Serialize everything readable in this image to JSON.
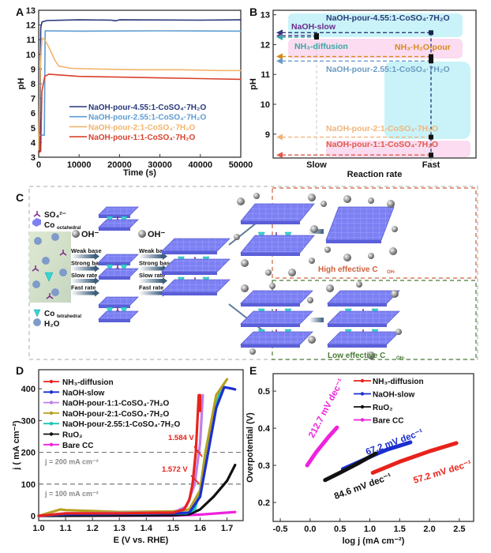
{
  "panel_labels": [
    "A",
    "B",
    "C",
    "D",
    "E"
  ],
  "chart_data": [
    {
      "panel": "A",
      "type": "line",
      "xlabel": "Time (s)",
      "ylabel": "pH",
      "xlim": [
        0,
        50000
      ],
      "ylim": [
        3,
        13
      ],
      "xticks": [
        "0",
        "10000",
        "20000",
        "30000",
        "40000",
        "50000"
      ],
      "yticks": [
        "3",
        "4",
        "5",
        "6",
        "7",
        "8",
        "9",
        "10",
        "11",
        "12",
        "13"
      ],
      "legend_placement": "bottom-center",
      "series": [
        {
          "name": "NaOH-pour-4.55:1-CoSO₄·7H₂O",
          "color": "#27367a",
          "points": [
            [
              0,
              3.3
            ],
            [
              300,
              3.4
            ],
            [
              500,
              11.8
            ],
            [
              800,
              12.2
            ],
            [
              2000,
              12.3
            ],
            [
              10000,
              12.35
            ],
            [
              18000,
              12.33
            ],
            [
              19000,
              12.28
            ],
            [
              20000,
              12.35
            ],
            [
              40000,
              12.33
            ],
            [
              50000,
              12.35
            ]
          ]
        },
        {
          "name": "NaOH-pour-2.55:1-CoSO₄·7H₂O",
          "color": "#5d9bd0",
          "points": [
            [
              0,
              4.5
            ],
            [
              1400,
              4.5
            ],
            [
              1600,
              11.6
            ],
            [
              10000,
              11.58
            ],
            [
              30000,
              11.6
            ],
            [
              50000,
              11.58
            ]
          ]
        },
        {
          "name": "NaOH-pour-2:1-CoSO₄·7H₂O",
          "color": "#f2b46c",
          "points": [
            [
              0,
              3.5
            ],
            [
              400,
              9
            ],
            [
              800,
              11.1
            ],
            [
              1500,
              11.0
            ],
            [
              2500,
              10.5
            ],
            [
              4000,
              9.6
            ],
            [
              5000,
              9.2
            ],
            [
              8000,
              9.05
            ],
            [
              15000,
              9.0
            ],
            [
              25000,
              8.95
            ],
            [
              35000,
              8.95
            ],
            [
              45000,
              8.9
            ],
            [
              50000,
              8.9
            ]
          ]
        },
        {
          "name": "NaOH-pour-1:1-CoSO₄·7H₂O",
          "color": "#d8402c",
          "points": [
            [
              0,
              3.3
            ],
            [
              500,
              3.4
            ],
            [
              800,
              7.5
            ],
            [
              1500,
              8.5
            ],
            [
              2500,
              8.65
            ],
            [
              5000,
              8.6
            ],
            [
              10000,
              8.5
            ],
            [
              20000,
              8.45
            ],
            [
              30000,
              8.4
            ],
            [
              40000,
              8.35
            ],
            [
              50000,
              8.3
            ]
          ]
        }
      ]
    },
    {
      "panel": "B",
      "type": "scatter",
      "xlabel": "Reaction rate",
      "ylabel": "pH",
      "categories": [
        "Slow",
        "Fast"
      ],
      "ylim": [
        8.2,
        13.15
      ],
      "yticks": [
        "9",
        "10",
        "11",
        "12",
        "13"
      ],
      "points": [
        {
          "name": "NaOH-pour-4.55:1-CoSO₄·7H₂O",
          "x": "Fast",
          "y": 12.4,
          "color": "#2b3a7a"
        },
        {
          "name": "NaOH-slow",
          "x": "Slow",
          "y": 12.3,
          "color": "#6a2c8c"
        },
        {
          "name": "NH₃-diffusion",
          "x": "Slow",
          "y": 12.25,
          "color": "#3aa6a6"
        },
        {
          "name": "NH₃·H₂O-pour",
          "x": "Fast",
          "y": 11.6,
          "color": "#d98a1a"
        },
        {
          "name": "NaOH-pour-2.55:1-CoSO₄·7H₂O",
          "x": "Fast",
          "y": 11.45,
          "color": "#6b9bc3"
        },
        {
          "name": "NaOH-pour-2:1-CoSO₄·7H₂O",
          "x": "Fast",
          "y": 8.9,
          "color": "#f2b47a"
        },
        {
          "name": "NaOH-pour-1:1-CoSO₄·7H₂O",
          "x": "Fast",
          "y": 8.3,
          "color": "#e25a4a"
        }
      ],
      "region_colors": {
        "cyan": "#c9f3f8",
        "pink": "#fbdcf0"
      }
    },
    {
      "panel": "D",
      "type": "line",
      "xlabel": "E (V vs. RHE)",
      "ylabel": "j ( mA cm⁻²)",
      "xlim": [
        1.0,
        1.76
      ],
      "ylim": [
        -15,
        460
      ],
      "xticks": [
        "1.0",
        "1.1",
        "1.2",
        "1.3",
        "1.4",
        "1.5",
        "1.6",
        "1.7"
      ],
      "yticks": [
        "0",
        "100",
        "200",
        "300",
        "400"
      ],
      "legend_placement": "top-left",
      "reference_lines": [
        {
          "y": 200,
          "label": "j = 200 mA  cm⁻²"
        },
        {
          "y": 100,
          "label": "j = 100 mA  cm⁻²"
        }
      ],
      "annotations": [
        {
          "text": "1.584 V",
          "E": 1.584,
          "j": 200
        },
        {
          "text": "1.572 V",
          "E": 1.572,
          "j": 100
        }
      ],
      "series": [
        {
          "name": "NH₃-diffusion",
          "color": "#e8221c",
          "points": [
            [
              1.0,
              0
            ],
            [
              1.1,
              8
            ],
            [
              1.3,
              8
            ],
            [
              1.5,
              10
            ],
            [
              1.54,
              20
            ],
            [
              1.56,
              50
            ],
            [
              1.572,
              100
            ],
            [
              1.584,
              200
            ],
            [
              1.59,
              300
            ],
            [
              1.595,
              380
            ],
            [
              1.6,
              380
            ],
            [
              1.6,
              330
            ]
          ]
        },
        {
          "name": "NaOH-slow",
          "color": "#1a2fd0",
          "points": [
            [
              1.0,
              0
            ],
            [
              1.1,
              5
            ],
            [
              1.5,
              8
            ],
            [
              1.56,
              10
            ],
            [
              1.6,
              60
            ],
            [
              1.63,
              200
            ],
            [
              1.66,
              340
            ],
            [
              1.69,
              405
            ],
            [
              1.72,
              400
            ],
            [
              1.73,
              398
            ]
          ]
        },
        {
          "name": "NaOH-pour-1:1-CoSO₄·7H₂O",
          "color": "#c07ee8",
          "points": [
            [
              1.0,
              0
            ],
            [
              1.1,
              8
            ],
            [
              1.5,
              10
            ],
            [
              1.55,
              30
            ],
            [
              1.58,
              100
            ],
            [
              1.6,
              230
            ],
            [
              1.61,
              380
            ]
          ]
        },
        {
          "name": "NaOH-pour-2:1-CoSO₄·7H₂O",
          "color": "#b8a020",
          "points": [
            [
              1.0,
              0
            ],
            [
              1.08,
              20
            ],
            [
              1.1,
              18
            ],
            [
              1.3,
              12
            ],
            [
              1.5,
              14
            ],
            [
              1.56,
              20
            ],
            [
              1.6,
              80
            ],
            [
              1.62,
              200
            ],
            [
              1.66,
              380
            ],
            [
              1.7,
              430
            ]
          ]
        },
        {
          "name": "NaOH-pour-2.55:1-CoSO₄·7H₂O",
          "color": "#1ac4b4",
          "points": [
            [
              1.0,
              0
            ],
            [
              1.1,
              5
            ],
            [
              1.55,
              8
            ],
            [
              1.58,
              20
            ],
            [
              1.6,
              80
            ],
            [
              1.62,
              200
            ],
            [
              1.65,
              330
            ],
            [
              1.68,
              400
            ]
          ]
        },
        {
          "name": "RuO₂",
          "color": "#111111",
          "points": [
            [
              1.0,
              0
            ],
            [
              1.5,
              2
            ],
            [
              1.56,
              5
            ],
            [
              1.6,
              20
            ],
            [
              1.65,
              60
            ],
            [
              1.7,
              110
            ],
            [
              1.73,
              160
            ]
          ]
        },
        {
          "name": "Bare CC",
          "color": "#ee22dd",
          "points": [
            [
              1.0,
              0
            ],
            [
              1.5,
              1
            ],
            [
              1.6,
              4
            ],
            [
              1.73,
              12
            ]
          ]
        }
      ]
    },
    {
      "panel": "E",
      "type": "line",
      "xlabel": "log j  (mA cm⁻²)",
      "ylabel": "Overpotential (V)",
      "xlim": [
        -0.62,
        2.74
      ],
      "ylim": [
        0.149,
        0.547
      ],
      "xticks": [
        "-0.5",
        "0.0",
        "0.5",
        "1.0",
        "1.5",
        "2.0",
        "2.5"
      ],
      "yticks": [
        "0.2",
        "0.3",
        "0.4",
        "0.5"
      ],
      "legend_placement": "top-center",
      "series": [
        {
          "name": "NH₃-diffusion",
          "color": "#e8221c",
          "slope_label": "57.2 mV dec⁻¹",
          "points": [
            [
              1.05,
              0.28
            ],
            [
              1.5,
              0.31
            ],
            [
              2.0,
              0.338
            ],
            [
              2.45,
              0.36
            ]
          ]
        },
        {
          "name": "NaOH-slow",
          "color": "#1a2fd0",
          "slope_label": "67.2 mV dec⁻¹",
          "points": [
            [
              0.55,
              0.29
            ],
            [
              0.9,
              0.315
            ],
            [
              1.1,
              0.33
            ],
            [
              1.3,
              0.343
            ],
            [
              1.5,
              0.353
            ],
            [
              1.68,
              0.362
            ]
          ]
        },
        {
          "name": "RuO₂",
          "color": "#111111",
          "slope_label": "84.6 mV dec⁻¹",
          "points": [
            [
              0.25,
              0.26
            ],
            [
              0.5,
              0.28
            ],
            [
              0.8,
              0.305
            ],
            [
              1.1,
              0.332
            ]
          ]
        },
        {
          "name": "Bare CC",
          "color": "#ee22dd",
          "slope_label": "212.7 mV dec⁻¹",
          "points": [
            [
              -0.05,
              0.3
            ],
            [
              0.1,
              0.335
            ],
            [
              0.3,
              0.375
            ],
            [
              0.45,
              0.402
            ]
          ]
        }
      ]
    }
  ],
  "panel_c": {
    "legend": {
      "sulfate": "SO₄²⁻",
      "co_oct": "Co",
      "co_oct_sub": "octahedral",
      "co_tet": "Co",
      "co_tet_sub": "tetrahedral",
      "water": "H₂O"
    },
    "oh_label": "OH⁻",
    "conditions": [
      "Weak base",
      "Strong base",
      "Slow rate",
      "Fast rate"
    ],
    "high_label": "High effective C",
    "high_sub": "OH-",
    "low_label": "Low effective C",
    "low_sub": "OH-",
    "colors": {
      "layer": "#7c80f2",
      "tetra": "#35d6d6",
      "sphere": "#9a9a9a",
      "high_box": "#d0603c",
      "low_box": "#4a7a34"
    }
  }
}
